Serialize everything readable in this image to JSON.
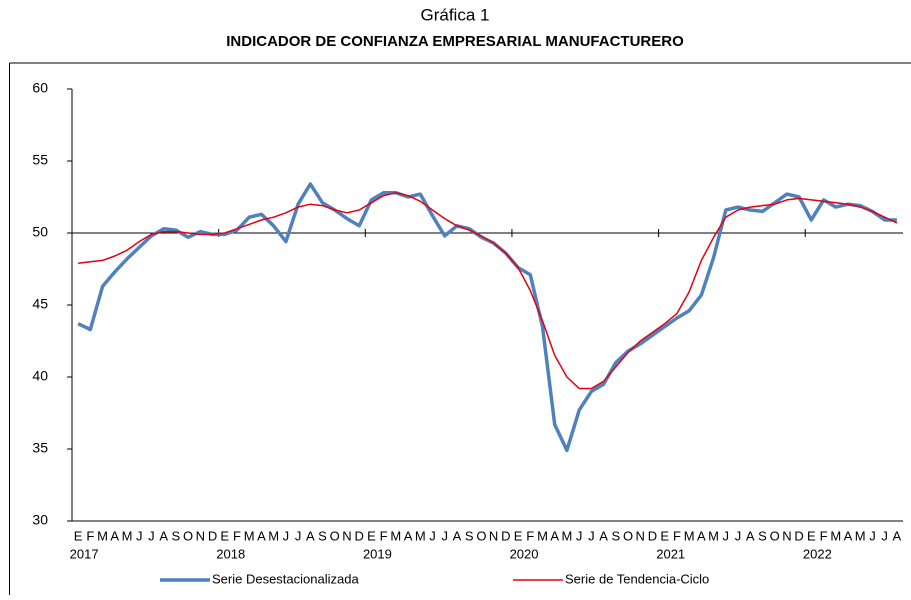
{
  "chart_data": {
    "type": "line",
    "title": "Gráfica 1",
    "subtitle": "INDICADOR DE CONFIANZA EMPRESARIAL MANUFACTURERO",
    "categories": [
      "E",
      "F",
      "M",
      "A",
      "M",
      "J",
      "J",
      "A",
      "S",
      "O",
      "N",
      "D",
      "E",
      "F",
      "M",
      "A",
      "M",
      "J",
      "J",
      "A",
      "S",
      "O",
      "N",
      "D",
      "E",
      "F",
      "M",
      "A",
      "M",
      "J",
      "J",
      "A",
      "S",
      "O",
      "N",
      "D",
      "E",
      "F",
      "M",
      "A",
      "M",
      "J",
      "J",
      "A",
      "S",
      "O",
      "N",
      "D",
      "E",
      "F",
      "M",
      "A",
      "M",
      "J",
      "J",
      "A",
      "S",
      "O",
      "N",
      "D",
      "E",
      "F",
      "M",
      "A",
      "M",
      "J",
      "J",
      "A"
    ],
    "years": [
      "2017",
      "2018",
      "2019",
      "2020",
      "2021",
      "2022"
    ],
    "series": [
      {
        "name": "Serie Desestacionalizada",
        "color": "#4f81bd",
        "values": [
          43.7,
          43.3,
          46.3,
          47.3,
          48.2,
          49.0,
          49.8,
          50.3,
          50.2,
          49.7,
          50.1,
          49.9,
          49.9,
          50.2,
          51.1,
          51.3,
          50.5,
          49.4,
          52.0,
          53.4,
          52.1,
          51.6,
          51.0,
          50.5,
          52.3,
          52.8,
          52.8,
          52.5,
          52.7,
          51.2,
          49.8,
          50.5,
          50.3,
          49.7,
          49.3,
          48.6,
          47.6,
          47.1,
          43.5,
          36.7,
          34.9,
          37.7,
          39.0,
          39.5,
          41.0,
          41.8,
          42.3,
          42.9,
          43.5,
          44.1,
          44.6,
          45.7,
          48.3,
          51.6,
          51.8,
          51.6,
          51.5,
          52.1,
          52.7,
          52.5,
          50.9,
          52.3,
          51.8,
          52.0,
          51.9,
          51.5,
          50.9,
          50.9
        ]
      },
      {
        "name": "Serie de Tendencia-Ciclo",
        "color": "#e3000f",
        "values": [
          47.9,
          48.0,
          48.1,
          48.4,
          48.8,
          49.4,
          49.9,
          50.1,
          50.1,
          50.0,
          49.9,
          49.9,
          50.0,
          50.3,
          50.6,
          50.9,
          51.1,
          51.4,
          51.8,
          52.0,
          51.9,
          51.6,
          51.4,
          51.6,
          52.1,
          52.6,
          52.8,
          52.6,
          52.2,
          51.6,
          51.0,
          50.5,
          50.2,
          49.8,
          49.3,
          48.6,
          47.6,
          46.0,
          43.9,
          41.5,
          40.0,
          39.2,
          39.2,
          39.7,
          40.7,
          41.7,
          42.5,
          43.1,
          43.7,
          44.4,
          45.9,
          48.1,
          49.7,
          51.1,
          51.6,
          51.8,
          51.9,
          52.0,
          52.3,
          52.4,
          52.3,
          52.2,
          52.1,
          52.0,
          51.8,
          51.5,
          51.1,
          50.7
        ]
      }
    ],
    "ylim": [
      30,
      60
    ],
    "yticks": [
      30,
      35,
      40,
      45,
      50,
      55,
      60
    ],
    "x_axis_at": 50,
    "legend": "bottom"
  }
}
